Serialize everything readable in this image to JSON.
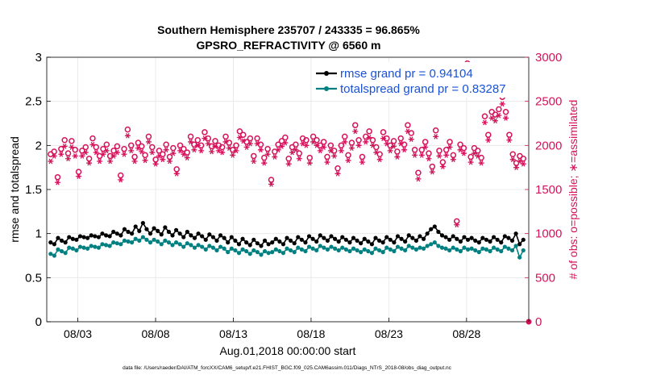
{
  "chart_data": {
    "type": "line",
    "title": "Southern Hemisphere 235707 / 243335 = 96.865%",
    "subtitle": "GPSRO_REFRACTIVITY @ 6560 m",
    "xlabel": "Aug.01,2018 00:00:00 start",
    "ylabel_left": "rmse and totalspread",
    "ylabel_right": "# of obs: o=possible; ∗=assimilated",
    "footer": "data file: /Users/raeder/DAI/ATM_forcXX/CAM6_setup/f.e21.FHIST_BGC.f09_025.CAM6assim.011/Diags_NTrS_2018-08/obs_diag_output.nc",
    "x_ticks": [
      "08/03",
      "08/08",
      "08/13",
      "08/18",
      "08/23",
      "08/28"
    ],
    "x_tick_days": [
      3,
      8,
      13,
      18,
      23,
      28
    ],
    "xlim_days": [
      1,
      32
    ],
    "ylim_left": [
      0,
      3
    ],
    "yticks_left": [
      "0",
      "0.5",
      "1",
      "1.5",
      "2",
      "2.5",
      "3"
    ],
    "ylim_right": [
      0,
      3000
    ],
    "yticks_right": [
      "0",
      "500",
      "1000",
      "1500",
      "2000",
      "2500",
      "3000"
    ],
    "grid": true,
    "legend_position": "top-right",
    "colors": {
      "rmse": "#000000",
      "totalspread": "#008080",
      "obs": "#d6125a",
      "legend_text": "#1a52d6",
      "axis": "#000000",
      "grid": "#e6e6e6"
    },
    "legend": [
      {
        "label": "rmse grand pr = 0.94104",
        "series": "rmse"
      },
      {
        "label": "totalspread grand pr = 0.83287",
        "series": "totalspread"
      }
    ],
    "series": [
      {
        "name": "rmse",
        "values": [
          0.9,
          0.88,
          0.95,
          0.92,
          0.9,
          0.96,
          0.94,
          0.93,
          0.97,
          0.96,
          0.95,
          0.98,
          0.97,
          0.96,
          1.0,
          0.98,
          0.97,
          1.02,
          1.0,
          0.98,
          1.05,
          1.02,
          1.0,
          1.08,
          1.03,
          1.12,
          1.05,
          1.0,
          1.06,
          1.03,
          0.99,
          1.07,
          1.02,
          0.98,
          1.04,
          1.0,
          0.96,
          1.02,
          0.98,
          0.95,
          1.0,
          0.97,
          0.93,
          0.99,
          0.96,
          0.92,
          0.98,
          0.95,
          0.9,
          0.96,
          0.92,
          0.88,
          0.94,
          0.9,
          0.87,
          0.93,
          0.89,
          0.86,
          0.92,
          0.88,
          0.9,
          0.94,
          0.91,
          0.88,
          0.95,
          0.92,
          0.89,
          0.96,
          0.93,
          0.9,
          0.97,
          0.94,
          0.91,
          0.98,
          0.95,
          0.92,
          0.97,
          0.94,
          0.91,
          0.96,
          0.93,
          0.9,
          0.95,
          0.92,
          0.89,
          0.94,
          0.91,
          0.88,
          0.95,
          0.92,
          0.9,
          0.96,
          0.93,
          0.9,
          0.97,
          0.94,
          0.91,
          0.98,
          0.95,
          0.92,
          0.97,
          0.94,
          1.0,
          1.05,
          1.08,
          1.02,
          0.98,
          0.96,
          0.93,
          0.97,
          0.94,
          0.91,
          0.96,
          0.93,
          0.95,
          0.92,
          0.9,
          0.95,
          0.93,
          0.91,
          0.96,
          0.93,
          0.9,
          0.97,
          0.95,
          0.92,
          1.0,
          0.88,
          0.93
        ],
        "color": "#000000"
      },
      {
        "name": "totalspread",
        "values": [
          0.77,
          0.75,
          0.82,
          0.8,
          0.78,
          0.84,
          0.83,
          0.81,
          0.85,
          0.84,
          0.83,
          0.86,
          0.85,
          0.84,
          0.88,
          0.87,
          0.86,
          0.9,
          0.89,
          0.88,
          0.92,
          0.91,
          0.9,
          0.94,
          0.92,
          0.96,
          0.93,
          0.9,
          0.93,
          0.91,
          0.88,
          0.92,
          0.9,
          0.87,
          0.9,
          0.88,
          0.85,
          0.89,
          0.87,
          0.84,
          0.87,
          0.85,
          0.82,
          0.86,
          0.84,
          0.81,
          0.85,
          0.83,
          0.79,
          0.83,
          0.81,
          0.78,
          0.82,
          0.8,
          0.77,
          0.81,
          0.79,
          0.76,
          0.8,
          0.78,
          0.79,
          0.82,
          0.8,
          0.78,
          0.83,
          0.81,
          0.79,
          0.84,
          0.82,
          0.8,
          0.85,
          0.83,
          0.81,
          0.86,
          0.84,
          0.82,
          0.85,
          0.83,
          0.81,
          0.84,
          0.82,
          0.8,
          0.83,
          0.81,
          0.79,
          0.82,
          0.8,
          0.78,
          0.83,
          0.81,
          0.79,
          0.84,
          0.82,
          0.8,
          0.85,
          0.83,
          0.81,
          0.86,
          0.84,
          0.82,
          0.84,
          0.83,
          0.86,
          0.88,
          0.9,
          0.86,
          0.84,
          0.83,
          0.81,
          0.84,
          0.82,
          0.8,
          0.84,
          0.82,
          0.83,
          0.81,
          0.79,
          0.83,
          0.82,
          0.8,
          0.84,
          0.82,
          0.8,
          0.85,
          0.83,
          0.81,
          0.86,
          0.73,
          0.81
        ],
        "color": "#008080"
      },
      {
        "name": "possible",
        "values": [
          1900,
          1930,
          1640,
          1960,
          2060,
          1910,
          2050,
          1950,
          1700,
          1940,
          1980,
          1850,
          2080,
          1980,
          1880,
          1960,
          2010,
          1880,
          1940,
          1990,
          1660,
          1960,
          2180,
          2000,
          1870,
          2030,
          1990,
          1890,
          2100,
          1980,
          1840,
          1940,
          1900,
          2010,
          1870,
          1970,
          1730,
          2000,
          1960,
          1920,
          2100,
          2010,
          2060,
          2000,
          2150,
          2080,
          1990,
          2050,
          2000,
          1980,
          2100,
          2030,
          1950,
          2000,
          2160,
          2120,
          2040,
          2080,
          1880,
          2080,
          2010,
          1860,
          1960,
          1610,
          1930,
          2010,
          2050,
          2090,
          1850,
          1980,
          2010,
          1910,
          2080,
          2060,
          1860,
          2100,
          2060,
          2000,
          2040,
          1870,
          2000,
          1940,
          1740,
          2000,
          2100,
          1890,
          2030,
          2230,
          2060,
          1870,
          2100,
          2160,
          2060,
          1980,
          1900,
          2150,
          2080,
          2000,
          2050,
          1930,
          2080,
          2010,
          2230,
          2140,
          1950,
          1690,
          1950,
          2040,
          1910,
          1760,
          2170,
          1940,
          1810,
          1950,
          2040,
          1890,
          1140,
          2010,
          1970,
          2930,
          1870,
          1970,
          1940,
          1860,
          2330,
          2120,
          2380,
          2350,
          2410,
          2550,
          2380,
          2120,
          1900,
          1800,
          1880,
          1850
        ],
        "color": "#d6125a",
        "marker": "circle"
      },
      {
        "name": "assimilated",
        "values": [
          1820,
          1880,
          1580,
          1900,
          1990,
          1850,
          1980,
          1880,
          1650,
          1880,
          1920,
          1800,
          2010,
          1920,
          1820,
          1900,
          1940,
          1820,
          1880,
          1920,
          1610,
          1900,
          2110,
          1940,
          1820,
          1970,
          1930,
          1830,
          2040,
          1920,
          1790,
          1880,
          1840,
          1950,
          1820,
          1910,
          1680,
          1940,
          1900,
          1860,
          2040,
          1950,
          2000,
          1940,
          2080,
          2020,
          1930,
          1990,
          1940,
          1920,
          2040,
          1970,
          1890,
          1940,
          2090,
          2050,
          1980,
          2020,
          1820,
          2020,
          1950,
          1800,
          1900,
          1560,
          1870,
          1950,
          1990,
          2030,
          1790,
          1920,
          1950,
          1850,
          2020,
          2000,
          1800,
          2040,
          2000,
          1940,
          1980,
          1810,
          1940,
          1880,
          1680,
          1940,
          2040,
          1830,
          1970,
          2160,
          2000,
          1810,
          2040,
          2090,
          2000,
          1920,
          1840,
          2080,
          2020,
          1940,
          1990,
          1870,
          2020,
          1950,
          2160,
          2070,
          1890,
          1620,
          1890,
          1980,
          1850,
          1700,
          2100,
          1880,
          1760,
          1890,
          1980,
          1840,
          1100,
          1950,
          1910,
          2830,
          1810,
          1910,
          1880,
          1800,
          2260,
          2060,
          2310,
          2280,
          2340,
          2470,
          2310,
          2060,
          1840,
          1750,
          1820,
          1790
        ],
        "color": "#d6125a",
        "marker": "asterisk"
      }
    ]
  }
}
